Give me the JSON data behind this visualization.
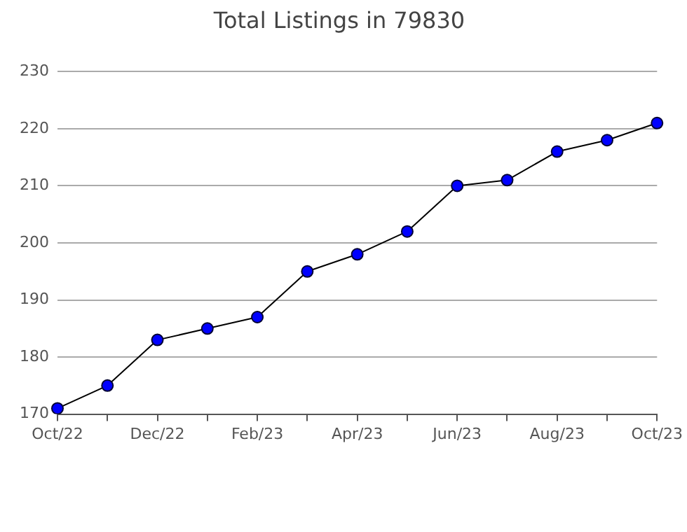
{
  "chart_data": {
    "type": "line",
    "title": "Total Listings in 79830",
    "categories": [
      "Oct/22",
      null,
      "Dec/22",
      null,
      "Feb/23",
      null,
      "Apr/23",
      null,
      "Jun/23",
      null,
      "Aug/23",
      null,
      "Oct/23"
    ],
    "series": [
      {
        "color": "#0000ff",
        "values": [
          171,
          175,
          183,
          185,
          187,
          195,
          198,
          202,
          210,
          211,
          216,
          218,
          221
        ]
      }
    ],
    "ylim": [
      170,
      230
    ],
    "yticks": [
      170,
      180,
      190,
      200,
      210,
      220,
      230
    ],
    "grid": "y",
    "marker": "circle",
    "line_style": "solid",
    "legend": false
  }
}
